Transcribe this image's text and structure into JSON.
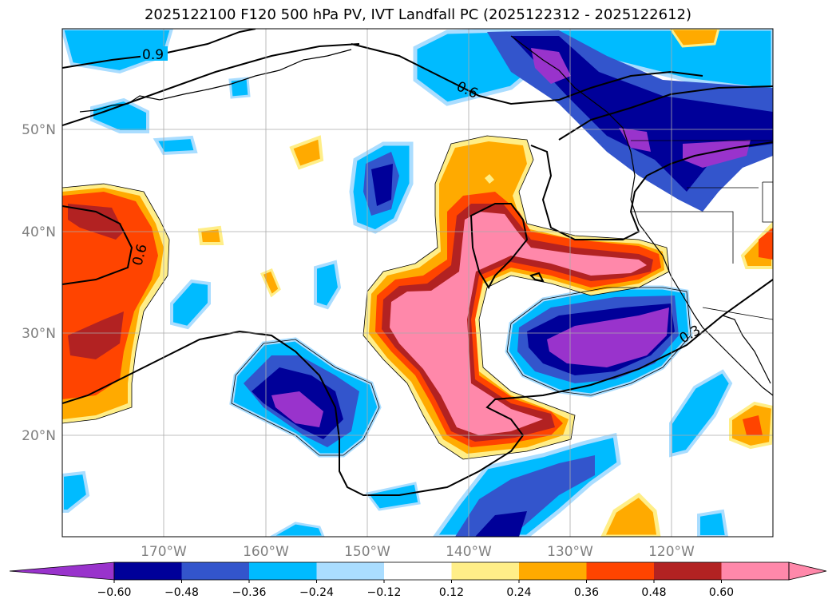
{
  "title": "2025122100 F120 500 hPa PV, IVT Landfall PC (2025122312 - 2025122612)",
  "map": {
    "lat_labels": [
      "50°N",
      "40°N",
      "30°N",
      "20°N"
    ],
    "lon_labels": [
      "170°W",
      "160°W",
      "150°W",
      "140°W",
      "130°W",
      "120°W"
    ],
    "contour_labels": [
      "0.9",
      "0.6",
      "0.6",
      "0.3"
    ]
  },
  "colorbar": {
    "tick_labels": [
      "−0.60",
      "−0.48",
      "−0.36",
      "−0.24",
      "−0.12",
      "0.12",
      "0.24",
      "0.36",
      "0.48",
      "0.60"
    ],
    "colors": [
      "#9933cc",
      "#000099",
      "#3355cc",
      "#00bbff",
      "#aaddff",
      "#ffffff",
      "#ffee88",
      "#ffaa00",
      "#ff4400",
      "#b22222",
      "#ff88aa",
      "#ff88aa"
    ]
  }
}
